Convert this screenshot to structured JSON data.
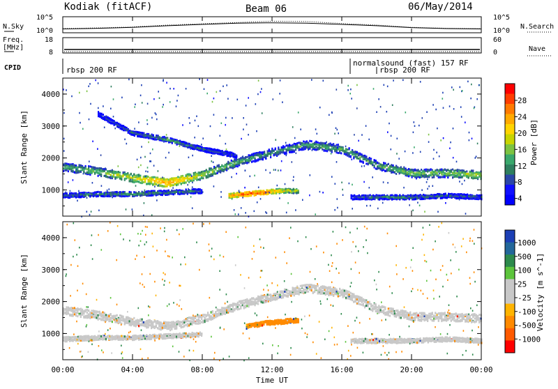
{
  "header": {
    "station": "Kodiak (fitACF)",
    "beam": "Beam 06",
    "date": "06/May/2014"
  },
  "top_panels": {
    "noise_left_label": "N.Sky",
    "noise_right_label": "N.Search",
    "noise_left_ticks": [
      "10^5",
      "10^0"
    ],
    "noise_right_ticks": [
      "10^5",
      "10^0"
    ],
    "freq_label_line1": "Freq.",
    "freq_label_line2": "[MHz]",
    "freq_ticks": [
      "18",
      "8"
    ],
    "nave_label": "Nave",
    "nave_ticks": [
      "60",
      "0"
    ],
    "cpid_label": "CPID",
    "cpid_segments": [
      {
        "label": "rbsp 200 RF",
        "start_hour": 0
      },
      {
        "label": "normalsound (fast) 157 RF",
        "start_hour": 16.3
      },
      {
        "label": "rbsp 200 RF",
        "start_hour": 18.0
      }
    ]
  },
  "axes": {
    "x_ticks": [
      "00:00",
      "04:00",
      "08:00",
      "12:00",
      "16:00",
      "20:00",
      "00:00"
    ],
    "x_label": "Time UT",
    "y_label": "Slant Range [km]",
    "y_ticks": [
      "1000",
      "2000",
      "3000",
      "4000"
    ]
  },
  "colorbars": {
    "power": {
      "label": "Power [dB]",
      "ticks": [
        "28",
        "24",
        "20",
        "16",
        "12",
        "8",
        "4"
      ],
      "colors": [
        "#ff0000",
        "#ff3d00",
        "#ff7a00",
        "#ffaa00",
        "#ffd400",
        "#c8d400",
        "#7cc341",
        "#3aa86c",
        "#2f7f5f",
        "#2b46a8",
        "#1010ff",
        "#0000ff"
      ]
    },
    "velocity": {
      "label": "Velocity [m s^-1]",
      "ticks": [
        "1000",
        "500",
        "100",
        "25",
        "-25",
        "-100",
        "-500",
        "-1000"
      ],
      "colors": [
        "#1c3fb5",
        "#23679a",
        "#2d8a4c",
        "#5cc43c",
        "#c8c8c8",
        "#c8c8c8",
        "#ffb400",
        "#ff8a00",
        "#ff5a00",
        "#ff0000"
      ]
    }
  },
  "chart_data": [
    {
      "type": "line",
      "title": "Kodiak (fitACF) Beam 06 06/May/2014",
      "panel": "noise",
      "ylabel": "N.Sky / N.Search",
      "x": [
        0,
        2,
        4,
        6,
        8,
        10,
        12,
        14,
        16,
        18,
        20,
        22,
        24
      ],
      "series": [
        {
          "name": "N.Sky",
          "values": [
            1.2,
            1.4,
            1.7,
            2.2,
            2.6,
            3.0,
            3.1,
            3.0,
            2.6,
            2.2,
            1.6,
            1.3,
            1.2
          ]
        },
        {
          "name": "N.Search",
          "values": [
            1.3,
            1.5,
            1.8,
            2.4,
            2.8,
            3.2,
            3.6,
            3.5,
            2.9,
            2.4,
            1.7,
            1.4,
            1.3
          ]
        }
      ],
      "ylim": [
        0,
        5
      ]
    },
    {
      "type": "line",
      "panel": "freq_nave",
      "x": [
        0,
        4,
        8,
        12,
        16,
        20,
        24
      ],
      "series": [
        {
          "name": "Freq.",
          "values": [
            10.5,
            10.5,
            10.5,
            10.5,
            10.5,
            10.5,
            10.5
          ]
        },
        {
          "name": "Nave",
          "values": [
            17,
            17,
            17,
            17,
            17,
            17,
            17
          ]
        }
      ],
      "ylim": [
        8,
        18
      ]
    },
    {
      "type": "heatmap",
      "panel": "power",
      "xlabel": "Time UT",
      "ylabel": "Slant Range [km]",
      "xlim": [
        0,
        24
      ],
      "ylim": [
        180,
        4500
      ],
      "colorbar_label": "Power [dB]",
      "colorbar_ticks": [
        4,
        8,
        12,
        16,
        20,
        24,
        28
      ],
      "bands": [
        {
          "t": [
            0,
            2,
            4,
            6,
            8,
            10,
            12,
            14,
            16,
            18,
            20,
            22,
            24
          ],
          "range": [
            1750,
            1600,
            1400,
            1250,
            1500,
            1900,
            2200,
            2450,
            2300,
            1800,
            1550,
            1550,
            1500
          ],
          "power": [
            12,
            14,
            18,
            24,
            16,
            12,
            10,
            12,
            12,
            12,
            14,
            14,
            16
          ]
        },
        {
          "t": [
            0,
            2,
            4,
            6,
            8
          ],
          "range": [
            850,
            900,
            900,
            950,
            1000
          ],
          "power": [
            8,
            10,
            12,
            10,
            8
          ]
        },
        {
          "t": [
            9.5,
            10.5,
            11.5,
            12.5,
            13.5
          ],
          "range": [
            850,
            900,
            950,
            1000,
            1000
          ],
          "power": [
            22,
            28,
            26,
            20,
            16
          ]
        },
        {
          "t": [
            16.5,
            18,
            20,
            22,
            24
          ],
          "range": [
            800,
            800,
            800,
            850,
            800
          ],
          "power": [
            8,
            10,
            10,
            8,
            8
          ]
        },
        {
          "t": [
            2,
            4,
            6,
            8,
            10
          ],
          "range": [
            3400,
            2800,
            2600,
            2300,
            2100
          ],
          "power": [
            6,
            8,
            12,
            8,
            6
          ]
        }
      ]
    },
    {
      "type": "heatmap",
      "panel": "velocity",
      "xlabel": "Time UT",
      "ylabel": "Slant Range [km]",
      "xlim": [
        0,
        24
      ],
      "ylim": [
        180,
        4500
      ],
      "colorbar_label": "Velocity [m s^-1]",
      "colorbar_ticks": [
        -1000,
        -500,
        -100,
        -25,
        25,
        100,
        500,
        1000
      ],
      "bands": [
        {
          "t": [
            0,
            2,
            4,
            6,
            8,
            10,
            12,
            14,
            16,
            18,
            20,
            22,
            24
          ],
          "range": [
            1750,
            1600,
            1400,
            1250,
            1500,
            1900,
            2200,
            2450,
            2300,
            1800,
            1550,
            1550,
            1500
          ],
          "velocity": [
            0,
            0,
            0,
            0,
            0,
            0,
            0,
            0,
            0,
            0,
            0,
            0,
            0
          ]
        },
        {
          "t": [
            0,
            2,
            4,
            6,
            8
          ],
          "range": [
            850,
            900,
            900,
            950,
            1000
          ],
          "velocity": [
            0,
            0,
            0,
            0,
            0
          ]
        },
        {
          "t": [
            10.5,
            11.5,
            12.5,
            13.5
          ],
          "range": [
            1250,
            1350,
            1400,
            1450
          ],
          "velocity": [
            -100,
            -200,
            -300,
            -150
          ]
        },
        {
          "t": [
            16.5,
            18,
            20,
            22,
            24
          ],
          "range": [
            800,
            800,
            800,
            850,
            800
          ],
          "velocity": [
            0,
            0,
            0,
            0,
            0
          ]
        }
      ]
    }
  ]
}
